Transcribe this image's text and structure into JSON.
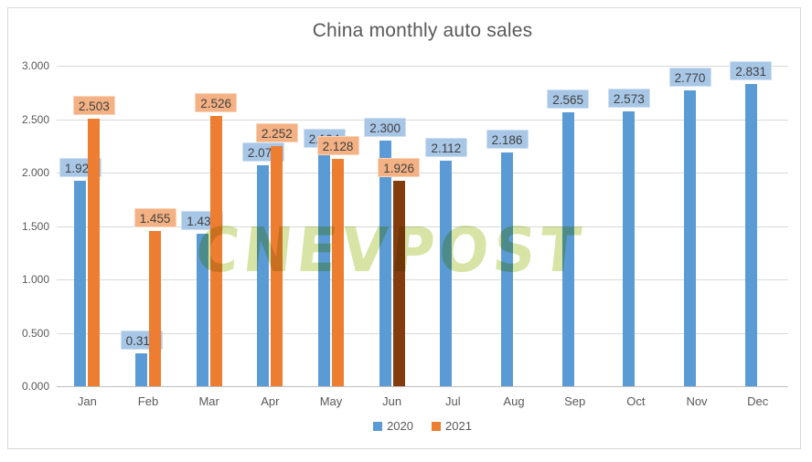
{
  "chart_data": {
    "type": "bar",
    "title": "China monthly auto sales",
    "watermark": "CNEVPOST",
    "categories": [
      "Jan",
      "Feb",
      "Mar",
      "Apr",
      "May",
      "Jun",
      "Jul",
      "Aug",
      "Sep",
      "Oct",
      "Nov",
      "Dec"
    ],
    "series": [
      {
        "name": "2020",
        "color": "#5B9BD5",
        "label_bg": "#A8C7E7",
        "values": [
          1.927,
          0.31,
          1.43,
          2.07,
          2.194,
          2.3,
          2.112,
          2.186,
          2.565,
          2.573,
          2.77,
          2.831
        ],
        "labels": [
          "1.927",
          "0.310",
          "1.430",
          "2.070",
          "2.194",
          "2.300",
          "2.112",
          "2.186",
          "2.565",
          "2.573",
          "2.770",
          "2.831"
        ]
      },
      {
        "name": "2021",
        "color": "#ED7D31",
        "label_bg": "#F4B183",
        "values": [
          2.503,
          1.455,
          2.526,
          2.252,
          2.128,
          1.926,
          null,
          null,
          null,
          null,
          null,
          null
        ],
        "labels": [
          "2.503",
          "1.455",
          "2.526",
          "2.252",
          "2.128",
          "1.926",
          "",
          "",
          "",
          "",
          "",
          ""
        ]
      }
    ],
    "highlight": {
      "series_index": 1,
      "category_index": 5,
      "color": "#843C0C"
    },
    "ylim": [
      0,
      3
    ],
    "yticks": [
      0,
      0.5,
      1.0,
      1.5,
      2.0,
      2.5,
      3.0
    ],
    "ytick_labels": [
      "0.000",
      "0.500",
      "1.000",
      "1.500",
      "2.000",
      "2.500",
      "3.000"
    ],
    "grid": true,
    "legend_position": "bottom",
    "value_labels": true
  },
  "legend": {
    "items": [
      {
        "label": "2020",
        "color": "#5B9BD5"
      },
      {
        "label": "2021",
        "color": "#ED7D31"
      }
    ]
  }
}
